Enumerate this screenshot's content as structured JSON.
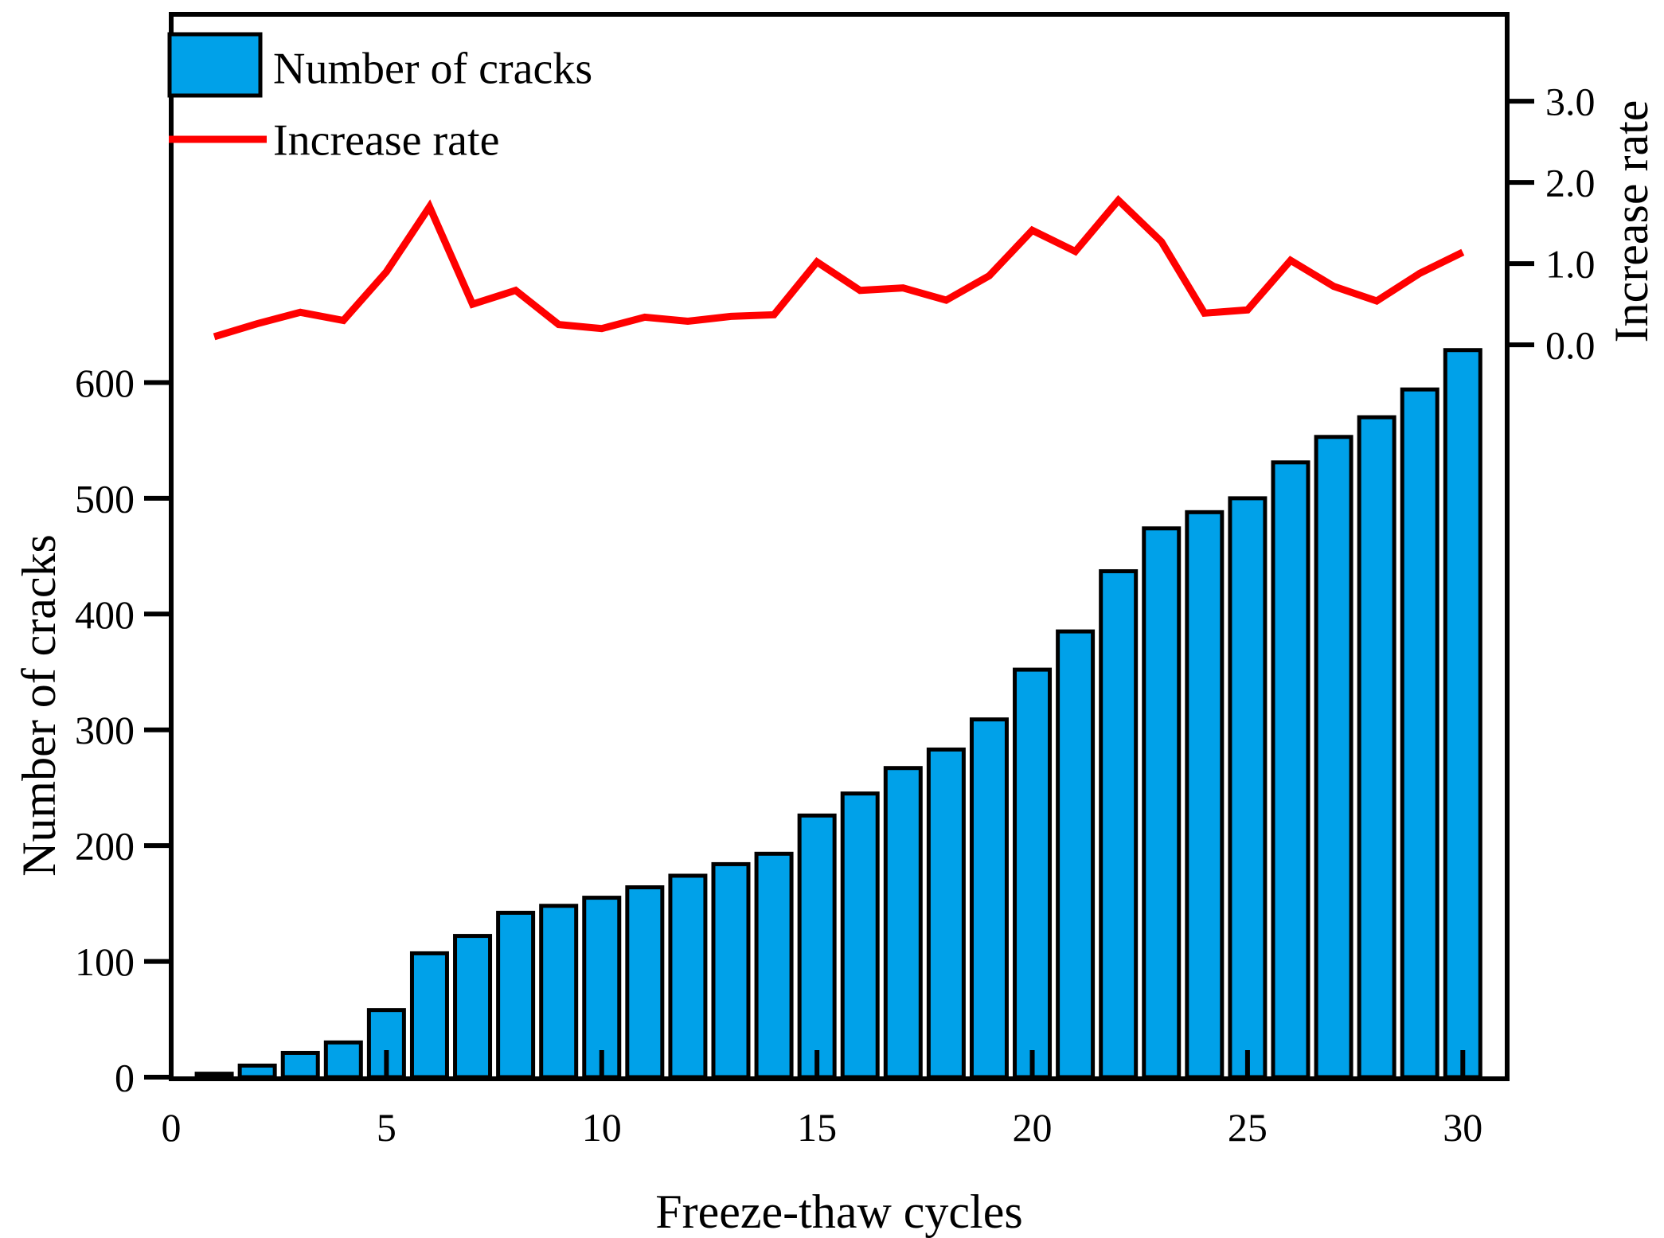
{
  "figure": {
    "background": "#ffffff",
    "axis_color": "#000000"
  },
  "legend": {
    "position": "top-left",
    "items": [
      {
        "label": "Number of cracks",
        "marker": "bar-swatch",
        "color": "#00A1E9"
      },
      {
        "label": "Increase rate",
        "marker": "line-sample",
        "color": "#FF0000"
      }
    ]
  },
  "chart_data": {
    "type": "bar+line",
    "title": "",
    "xlabel": "Freeze-thaw cycles",
    "ylabel_left": "Number of cracks",
    "ylabel_right": "Increase rate",
    "x": [
      1,
      2,
      3,
      4,
      5,
      6,
      7,
      8,
      9,
      10,
      11,
      12,
      13,
      14,
      15,
      16,
      17,
      18,
      19,
      20,
      21,
      22,
      23,
      24,
      25,
      26,
      27,
      28,
      29,
      30
    ],
    "series": [
      {
        "name": "Number of cracks",
        "type": "bar",
        "axis": "left",
        "color": "#00A1E9",
        "edge_color": "#000000",
        "values": [
          3,
          10,
          21,
          30,
          58,
          107,
          122,
          142,
          148,
          155,
          164,
          174,
          184,
          193,
          226,
          245,
          267,
          283,
          309,
          352,
          385,
          437,
          474,
          488,
          500,
          531,
          553,
          570,
          594,
          628
        ]
      },
      {
        "name": "Increase rate",
        "type": "line",
        "axis": "right",
        "color": "#FF0000",
        "values": [
          0.1,
          0.26,
          0.4,
          0.3,
          0.9,
          1.7,
          0.5,
          0.67,
          0.25,
          0.2,
          0.34,
          0.29,
          0.35,
          0.37,
          1.02,
          0.67,
          0.7,
          0.55,
          0.85,
          1.41,
          1.15,
          1.78,
          1.27,
          0.39,
          0.43,
          1.04,
          0.72,
          0.54,
          0.88,
          1.14
        ]
      }
    ],
    "x_ticks": [
      0,
      5,
      10,
      15,
      20,
      25,
      30
    ],
    "y_left_ticks": [
      0,
      100,
      200,
      300,
      400,
      500,
      600
    ],
    "y_right_ticks": [
      "0.0",
      "1.0",
      "2.0",
      "3.0"
    ],
    "y_right_tick_values": [
      0,
      1,
      2,
      3
    ],
    "x_range": [
      0,
      31.03
    ],
    "y_left_range": [
      0,
      918
    ],
    "y_right_range": [
      -9.02,
      4.07
    ],
    "grid": false,
    "legend_position": "top-left"
  }
}
